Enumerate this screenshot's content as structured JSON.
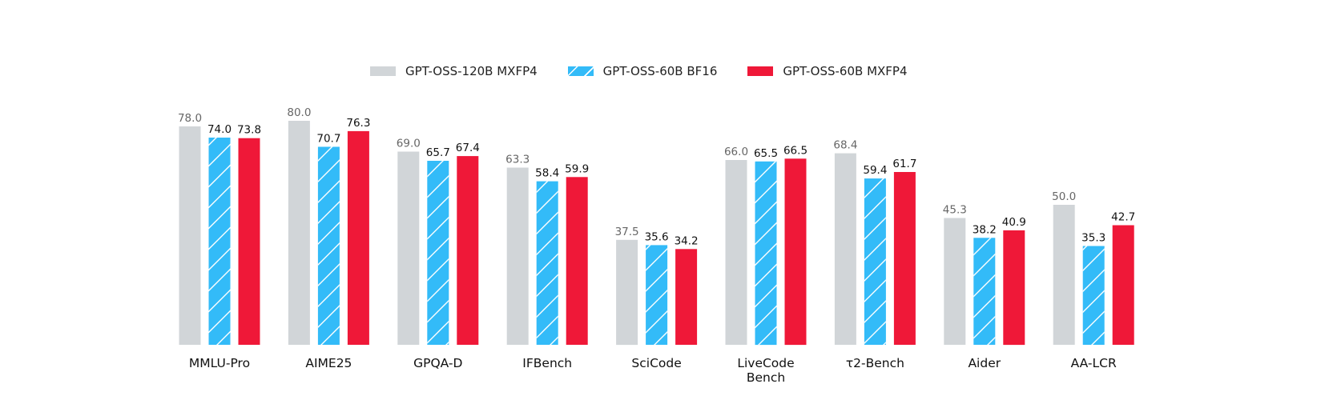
{
  "chart_data": {
    "type": "bar",
    "categories": [
      "MMLU-Pro",
      "AIME25",
      "GPQA-D",
      "IFBench",
      "SciCode",
      "LiveCode\nBench",
      "τ2-Bench",
      "Aider",
      "AA-LCR"
    ],
    "series": [
      {
        "name": "GPT-OSS-120B MXFP4",
        "values": [
          78.0,
          80.0,
          69.0,
          63.3,
          37.5,
          66.0,
          68.4,
          45.3,
          50.0
        ],
        "color": "#d1d5d8",
        "label_color": "#666666",
        "hatch": false
      },
      {
        "name": "GPT-OSS-60B BF16",
        "values": [
          74.0,
          70.7,
          65.7,
          58.4,
          35.6,
          65.5,
          59.4,
          38.2,
          35.3
        ],
        "color": "#33bbf8",
        "label_color": "#111111",
        "hatch": true
      },
      {
        "name": "GPT-OSS-60B MXFP4",
        "values": [
          73.8,
          76.3,
          67.4,
          59.9,
          34.2,
          66.5,
          61.7,
          40.9,
          42.7
        ],
        "color": "#ef1838",
        "label_color": "#111111",
        "hatch": false
      }
    ],
    "ylim": [
      0,
      80
    ],
    "grid": false,
    "legend": "top-center",
    "value_format": "0.0"
  }
}
